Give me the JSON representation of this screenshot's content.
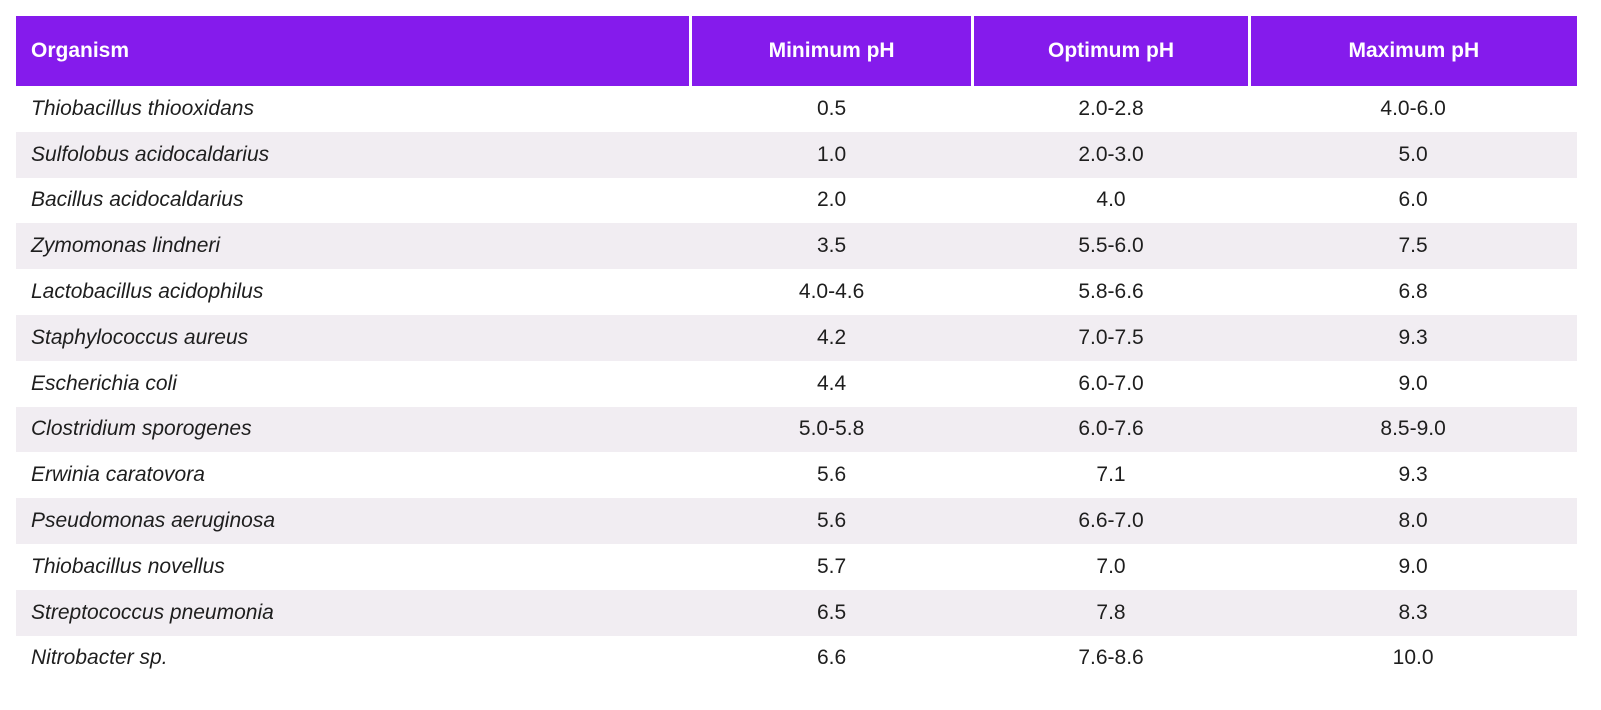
{
  "colors": {
    "header_bg": "#851BEC",
    "header_text": "#FFFFFF",
    "row_alt_bg": "#F1EDF2",
    "body_text": "#1E1E1E"
  },
  "table": {
    "columns": [
      "Organism",
      "Minimum pH",
      "Optimum pH",
      "Maximum pH"
    ],
    "rows": [
      {
        "organism": "Thiobacillus thiooxidans",
        "min": "0.5",
        "opt": "2.0-2.8",
        "max": "4.0-6.0"
      },
      {
        "organism": "Sulfolobus acidocaldarius",
        "min": "1.0",
        "opt": "2.0-3.0",
        "max": "5.0"
      },
      {
        "organism": "Bacillus acidocaldarius",
        "min": "2.0",
        "opt": "4.0",
        "max": "6.0"
      },
      {
        "organism": "Zymomonas lindneri",
        "min": "3.5",
        "opt": "5.5-6.0",
        "max": "7.5"
      },
      {
        "organism": "Lactobacillus acidophilus",
        "min": "4.0-4.6",
        "opt": "5.8-6.6",
        "max": "6.8"
      },
      {
        "organism": "Staphylococcus aureus",
        "min": "4.2",
        "opt": "7.0-7.5",
        "max": "9.3"
      },
      {
        "organism": "Escherichia coli",
        "min": "4.4",
        "opt": "6.0-7.0",
        "max": "9.0"
      },
      {
        "organism": "Clostridium sporogenes",
        "min": "5.0-5.8",
        "opt": "6.0-7.6",
        "max": "8.5-9.0"
      },
      {
        "organism": "Erwinia caratovora",
        "min": "5.6",
        "opt": "7.1",
        "max": "9.3"
      },
      {
        "organism": "Pseudomonas aeruginosa",
        "min": "5.6",
        "opt": "6.6-7.0",
        "max": "8.0"
      },
      {
        "organism": "Thiobacillus novellus",
        "min": "5.7",
        "opt": "7.0",
        "max": "9.0"
      },
      {
        "organism": "Streptococcus pneumonia",
        "min": "6.5",
        "opt": "7.8",
        "max": "8.3"
      },
      {
        "organism": "Nitrobacter sp.",
        "min": "6.6",
        "opt": "7.6-8.6",
        "max": "10.0"
      }
    ]
  },
  "chart_data": {
    "type": "table",
    "title": "",
    "columns": [
      "Organism",
      "Minimum pH",
      "Optimum pH",
      "Maximum pH"
    ],
    "rows": [
      [
        "Thiobacillus thiooxidans",
        "0.5",
        "2.0-2.8",
        "4.0-6.0"
      ],
      [
        "Sulfolobus acidocaldarius",
        "1.0",
        "2.0-3.0",
        "5.0"
      ],
      [
        "Bacillus acidocaldarius",
        "2.0",
        "4.0",
        "6.0"
      ],
      [
        "Zymomonas lindneri",
        "3.5",
        "5.5-6.0",
        "7.5"
      ],
      [
        "Lactobacillus acidophilus",
        "4.0-4.6",
        "5.8-6.6",
        "6.8"
      ],
      [
        "Staphylococcus aureus",
        "4.2",
        "7.0-7.5",
        "9.3"
      ],
      [
        "Escherichia coli",
        "4.4",
        "6.0-7.0",
        "9.0"
      ],
      [
        "Clostridium sporogenes",
        "5.0-5.8",
        "6.0-7.6",
        "8.5-9.0"
      ],
      [
        "Erwinia caratovora",
        "5.6",
        "7.1",
        "9.3"
      ],
      [
        "Pseudomonas aeruginosa",
        "5.6",
        "6.6-7.0",
        "8.0"
      ],
      [
        "Thiobacillus novellus",
        "5.7",
        "7.0",
        "9.0"
      ],
      [
        "Streptococcus pneumonia",
        "6.5",
        "7.8",
        "8.3"
      ],
      [
        "Nitrobacter sp.",
        "6.6",
        "7.6-8.6",
        "10.0"
      ]
    ],
    "layout": {
      "header_style": "solid purple bar with white text and white column dividers",
      "row_striping": "alternating white and light lavender",
      "organism_column_style": "italic, left-aligned",
      "value_columns_style": "centered"
    }
  }
}
